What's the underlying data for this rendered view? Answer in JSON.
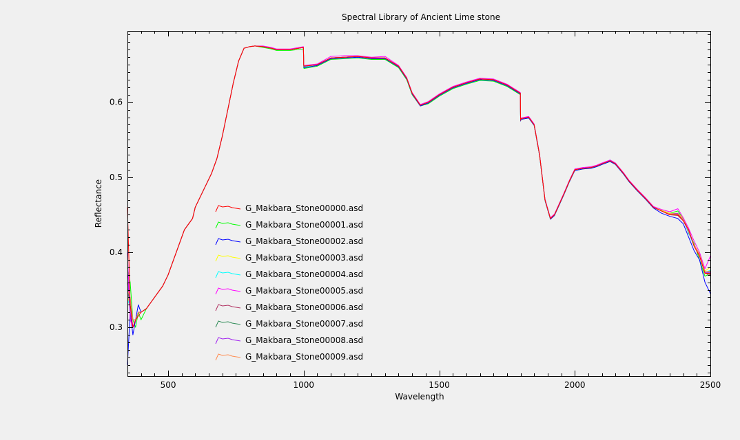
{
  "chart_data": {
    "type": "line",
    "title": "Spectral Library of Ancient Lime stone",
    "xlabel": "Wavelength",
    "ylabel": "Reflectance",
    "xlim": [
      350,
      2500
    ],
    "ylim": [
      0.235,
      0.695
    ],
    "x_ticks": [
      500,
      1000,
      1500,
      2000,
      2500
    ],
    "y_ticks": [
      0.3,
      0.4,
      0.5,
      0.6
    ],
    "legend_position": "inside-lower-left",
    "grid": false,
    "x": [
      350,
      360,
      370,
      380,
      390,
      400,
      420,
      440,
      460,
      480,
      500,
      520,
      540,
      560,
      580,
      590,
      600,
      620,
      640,
      660,
      680,
      700,
      720,
      740,
      760,
      780,
      800,
      820,
      850,
      880,
      900,
      950,
      999,
      1000,
      1001,
      1050,
      1100,
      1150,
      1200,
      1250,
      1300,
      1350,
      1380,
      1400,
      1430,
      1460,
      1500,
      1550,
      1600,
      1650,
      1700,
      1750,
      1799,
      1800,
      1801,
      1830,
      1850,
      1870,
      1890,
      1910,
      1925,
      1940,
      1960,
      1980,
      2000,
      2030,
      2060,
      2080,
      2100,
      2130,
      2150,
      2180,
      2200,
      2230,
      2260,
      2290,
      2320,
      2350,
      2380,
      2400,
      2420,
      2440,
      2460,
      2480,
      2500
    ],
    "series": [
      {
        "name": "G_Makbara_Stone00000.asd",
        "color": "#ff0000",
        "values": [
          0.46,
          0.33,
          0.3,
          0.31,
          0.315,
          0.32,
          0.325,
          0.335,
          0.345,
          0.355,
          0.37,
          0.39,
          0.41,
          0.43,
          0.44,
          0.445,
          0.46,
          0.475,
          0.49,
          0.505,
          0.525,
          0.555,
          0.59,
          0.625,
          0.655,
          0.672,
          0.674,
          0.675,
          0.674,
          0.672,
          0.67,
          0.67,
          0.673,
          0.65,
          0.648,
          0.65,
          0.659,
          0.66,
          0.661,
          0.659,
          0.659,
          0.648,
          0.632,
          0.612,
          0.596,
          0.6,
          0.61,
          0.62,
          0.626,
          0.631,
          0.63,
          0.623,
          0.612,
          0.576,
          0.578,
          0.58,
          0.57,
          0.53,
          0.47,
          0.445,
          0.45,
          0.462,
          0.478,
          0.495,
          0.51,
          0.512,
          0.513,
          0.515,
          0.518,
          0.522,
          0.518,
          0.505,
          0.495,
          0.483,
          0.472,
          0.46,
          0.455,
          0.45,
          0.45,
          0.442,
          0.43,
          0.408,
          0.395,
          0.372,
          0.372
        ]
      },
      {
        "name": "G_Makbara_Stone00001.asd",
        "color": "#00ff00",
        "values": [
          0.38,
          0.36,
          0.31,
          0.3,
          0.32,
          0.31,
          0.325,
          0.335,
          0.345,
          0.355,
          0.37,
          0.39,
          0.41,
          0.43,
          0.44,
          0.445,
          0.46,
          0.475,
          0.49,
          0.505,
          0.525,
          0.555,
          0.59,
          0.625,
          0.655,
          0.672,
          0.674,
          0.675,
          0.673,
          0.671,
          0.669,
          0.669,
          0.671,
          0.646,
          0.645,
          0.648,
          0.657,
          0.658,
          0.659,
          0.657,
          0.657,
          0.646,
          0.63,
          0.61,
          0.595,
          0.598,
          0.608,
          0.618,
          0.624,
          0.629,
          0.628,
          0.621,
          0.61,
          0.575,
          0.577,
          0.579,
          0.569,
          0.529,
          0.469,
          0.444,
          0.449,
          0.461,
          0.477,
          0.494,
          0.509,
          0.511,
          0.512,
          0.514,
          0.517,
          0.521,
          0.517,
          0.504,
          0.494,
          0.482,
          0.471,
          0.459,
          0.456,
          0.452,
          0.455,
          0.445,
          0.425,
          0.412,
          0.39,
          0.368,
          0.372
        ]
      },
      {
        "name": "G_Makbara_Stone00002.asd",
        "color": "#0000ff",
        "values": [
          0.25,
          0.32,
          0.29,
          0.31,
          0.33,
          0.32,
          0.325,
          0.335,
          0.345,
          0.355,
          0.37,
          0.39,
          0.41,
          0.43,
          0.44,
          0.445,
          0.46,
          0.475,
          0.49,
          0.505,
          0.525,
          0.555,
          0.59,
          0.625,
          0.655,
          0.672,
          0.674,
          0.675,
          0.674,
          0.672,
          0.67,
          0.67,
          0.673,
          0.648,
          0.646,
          0.649,
          0.658,
          0.659,
          0.66,
          0.658,
          0.658,
          0.647,
          0.631,
          0.611,
          0.595,
          0.599,
          0.609,
          0.619,
          0.625,
          0.63,
          0.629,
          0.622,
          0.611,
          0.575,
          0.577,
          0.579,
          0.569,
          0.529,
          0.469,
          0.444,
          0.449,
          0.461,
          0.477,
          0.494,
          0.509,
          0.511,
          0.512,
          0.514,
          0.517,
          0.521,
          0.517,
          0.504,
          0.494,
          0.482,
          0.471,
          0.459,
          0.452,
          0.448,
          0.445,
          0.438,
          0.42,
          0.402,
          0.39,
          0.36,
          0.345
        ]
      },
      {
        "name": "G_Makbara_Stone00003.asd",
        "color": "#ffff00",
        "values": [
          0.34,
          0.33,
          0.31,
          0.31,
          0.32,
          0.32,
          0.325,
          0.335,
          0.345,
          0.355,
          0.37,
          0.39,
          0.41,
          0.43,
          0.44,
          0.445,
          0.46,
          0.475,
          0.49,
          0.505,
          0.525,
          0.555,
          0.59,
          0.625,
          0.655,
          0.672,
          0.674,
          0.675,
          0.674,
          0.672,
          0.67,
          0.67,
          0.673,
          0.649,
          0.647,
          0.65,
          0.659,
          0.66,
          0.661,
          0.659,
          0.659,
          0.648,
          0.632,
          0.612,
          0.596,
          0.6,
          0.61,
          0.62,
          0.626,
          0.631,
          0.63,
          0.623,
          0.612,
          0.576,
          0.578,
          0.58,
          0.57,
          0.53,
          0.47,
          0.445,
          0.45,
          0.462,
          0.478,
          0.495,
          0.51,
          0.512,
          0.513,
          0.515,
          0.518,
          0.522,
          0.518,
          0.505,
          0.495,
          0.483,
          0.472,
          0.46,
          0.456,
          0.452,
          0.452,
          0.446,
          0.428,
          0.41,
          0.398,
          0.375,
          0.38
        ]
      },
      {
        "name": "G_Makbara_Stone00004.asd",
        "color": "#00ffff",
        "values": [
          0.33,
          0.34,
          0.31,
          0.31,
          0.32,
          0.32,
          0.325,
          0.335,
          0.345,
          0.355,
          0.37,
          0.39,
          0.41,
          0.43,
          0.44,
          0.445,
          0.46,
          0.475,
          0.49,
          0.505,
          0.525,
          0.555,
          0.59,
          0.625,
          0.655,
          0.672,
          0.674,
          0.675,
          0.674,
          0.672,
          0.67,
          0.67,
          0.673,
          0.649,
          0.647,
          0.65,
          0.659,
          0.66,
          0.661,
          0.659,
          0.659,
          0.648,
          0.632,
          0.612,
          0.596,
          0.6,
          0.61,
          0.62,
          0.626,
          0.631,
          0.63,
          0.623,
          0.612,
          0.576,
          0.578,
          0.58,
          0.57,
          0.53,
          0.47,
          0.445,
          0.45,
          0.462,
          0.478,
          0.495,
          0.51,
          0.512,
          0.513,
          0.515,
          0.518,
          0.523,
          0.519,
          0.505,
          0.495,
          0.483,
          0.472,
          0.46,
          0.455,
          0.451,
          0.45,
          0.443,
          0.426,
          0.408,
          0.396,
          0.373,
          0.376
        ]
      },
      {
        "name": "G_Makbara_Stone00005.asd",
        "color": "#ff00ff",
        "values": [
          0.4,
          0.31,
          0.3,
          0.31,
          0.32,
          0.32,
          0.325,
          0.335,
          0.345,
          0.355,
          0.37,
          0.39,
          0.41,
          0.43,
          0.44,
          0.445,
          0.46,
          0.475,
          0.49,
          0.505,
          0.525,
          0.555,
          0.59,
          0.625,
          0.655,
          0.672,
          0.674,
          0.675,
          0.675,
          0.673,
          0.671,
          0.671,
          0.674,
          0.651,
          0.649,
          0.651,
          0.661,
          0.662,
          0.662,
          0.66,
          0.661,
          0.649,
          0.633,
          0.613,
          0.597,
          0.601,
          0.611,
          0.621,
          0.627,
          0.632,
          0.631,
          0.624,
          0.613,
          0.577,
          0.579,
          0.581,
          0.571,
          0.531,
          0.471,
          0.446,
          0.451,
          0.463,
          0.479,
          0.496,
          0.511,
          0.513,
          0.514,
          0.516,
          0.519,
          0.523,
          0.519,
          0.506,
          0.496,
          0.484,
          0.473,
          0.461,
          0.457,
          0.454,
          0.458,
          0.446,
          0.432,
          0.415,
          0.4,
          0.378,
          0.395
        ]
      },
      {
        "name": "G_Makbara_Stone00006.asd",
        "color": "#b03060",
        "values": [
          0.36,
          0.32,
          0.3,
          0.31,
          0.32,
          0.32,
          0.325,
          0.335,
          0.345,
          0.355,
          0.37,
          0.39,
          0.41,
          0.43,
          0.44,
          0.445,
          0.46,
          0.475,
          0.49,
          0.505,
          0.525,
          0.555,
          0.59,
          0.625,
          0.655,
          0.672,
          0.674,
          0.675,
          0.674,
          0.672,
          0.67,
          0.67,
          0.673,
          0.65,
          0.648,
          0.65,
          0.659,
          0.66,
          0.661,
          0.659,
          0.659,
          0.648,
          0.632,
          0.612,
          0.596,
          0.6,
          0.61,
          0.62,
          0.626,
          0.631,
          0.63,
          0.623,
          0.612,
          0.576,
          0.578,
          0.58,
          0.57,
          0.53,
          0.47,
          0.445,
          0.45,
          0.462,
          0.478,
          0.495,
          0.51,
          0.512,
          0.513,
          0.515,
          0.518,
          0.522,
          0.518,
          0.505,
          0.495,
          0.483,
          0.472,
          0.46,
          0.455,
          0.45,
          0.449,
          0.442,
          0.428,
          0.409,
          0.395,
          0.372,
          0.37
        ]
      },
      {
        "name": "G_Makbara_Stone00007.asd",
        "color": "#2e8b57",
        "values": [
          0.35,
          0.33,
          0.31,
          0.31,
          0.32,
          0.32,
          0.325,
          0.335,
          0.345,
          0.355,
          0.37,
          0.39,
          0.41,
          0.43,
          0.44,
          0.445,
          0.46,
          0.475,
          0.49,
          0.505,
          0.525,
          0.555,
          0.59,
          0.625,
          0.655,
          0.672,
          0.674,
          0.675,
          0.674,
          0.672,
          0.67,
          0.67,
          0.673,
          0.65,
          0.648,
          0.65,
          0.659,
          0.66,
          0.661,
          0.659,
          0.659,
          0.648,
          0.632,
          0.612,
          0.596,
          0.6,
          0.61,
          0.62,
          0.626,
          0.631,
          0.63,
          0.623,
          0.612,
          0.576,
          0.578,
          0.58,
          0.57,
          0.53,
          0.47,
          0.445,
          0.45,
          0.462,
          0.478,
          0.495,
          0.51,
          0.512,
          0.513,
          0.515,
          0.518,
          0.522,
          0.518,
          0.505,
          0.495,
          0.483,
          0.472,
          0.46,
          0.455,
          0.451,
          0.451,
          0.444,
          0.429,
          0.41,
          0.397,
          0.374,
          0.374
        ]
      },
      {
        "name": "G_Makbara_Stone00008.asd",
        "color": "#a020f0",
        "values": [
          0.37,
          0.32,
          0.3,
          0.31,
          0.32,
          0.32,
          0.325,
          0.335,
          0.345,
          0.355,
          0.37,
          0.39,
          0.41,
          0.43,
          0.44,
          0.445,
          0.46,
          0.475,
          0.49,
          0.505,
          0.525,
          0.555,
          0.59,
          0.625,
          0.655,
          0.672,
          0.674,
          0.675,
          0.674,
          0.672,
          0.67,
          0.67,
          0.673,
          0.65,
          0.648,
          0.65,
          0.659,
          0.66,
          0.661,
          0.659,
          0.659,
          0.648,
          0.632,
          0.612,
          0.596,
          0.6,
          0.61,
          0.62,
          0.626,
          0.631,
          0.63,
          0.623,
          0.612,
          0.576,
          0.578,
          0.58,
          0.57,
          0.53,
          0.47,
          0.445,
          0.45,
          0.462,
          0.478,
          0.495,
          0.51,
          0.512,
          0.513,
          0.515,
          0.518,
          0.522,
          0.518,
          0.505,
          0.495,
          0.483,
          0.472,
          0.46,
          0.455,
          0.451,
          0.452,
          0.444,
          0.427,
          0.409,
          0.396,
          0.373,
          0.373
        ]
      },
      {
        "name": "G_Makbara_Stone00009.asd",
        "color": "#ff8c50",
        "values": [
          0.35,
          0.34,
          0.31,
          0.31,
          0.32,
          0.32,
          0.325,
          0.335,
          0.345,
          0.355,
          0.37,
          0.39,
          0.41,
          0.43,
          0.44,
          0.445,
          0.46,
          0.475,
          0.49,
          0.505,
          0.525,
          0.555,
          0.59,
          0.625,
          0.655,
          0.672,
          0.674,
          0.675,
          0.674,
          0.672,
          0.67,
          0.67,
          0.673,
          0.65,
          0.648,
          0.65,
          0.659,
          0.66,
          0.661,
          0.659,
          0.659,
          0.648,
          0.632,
          0.612,
          0.596,
          0.6,
          0.61,
          0.62,
          0.626,
          0.631,
          0.63,
          0.623,
          0.612,
          0.576,
          0.578,
          0.58,
          0.57,
          0.53,
          0.47,
          0.445,
          0.45,
          0.462,
          0.478,
          0.495,
          0.51,
          0.512,
          0.513,
          0.515,
          0.518,
          0.522,
          0.518,
          0.505,
          0.495,
          0.483,
          0.472,
          0.46,
          0.455,
          0.451,
          0.451,
          0.444,
          0.428,
          0.41,
          0.397,
          0.374,
          0.375
        ]
      }
    ]
  }
}
